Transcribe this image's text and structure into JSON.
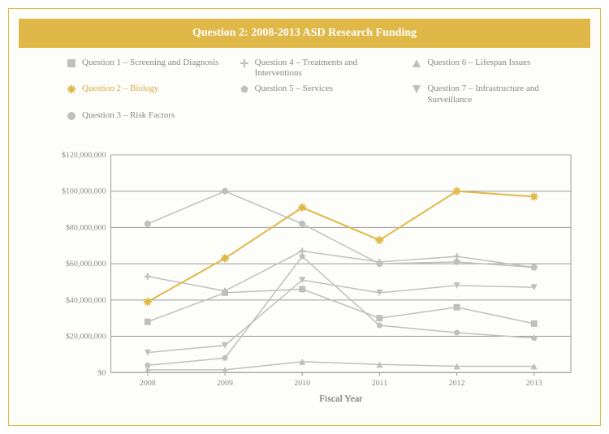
{
  "title": "Question 2: 2008-2013 ASD Research Funding",
  "title_bg": "#e0b848",
  "title_color": "#ffffff",
  "title_fontsize": 14,
  "frame_border": "#e0b848",
  "bg": "#fdfdf9",
  "legend_text_color": "#888888",
  "legend_highlight_color": "#d9a93e",
  "legend_fontsize": 11,
  "chart": {
    "type": "line",
    "xlabel": "Fiscal Year",
    "x_categories": [
      "2008",
      "2009",
      "2010",
      "2011",
      "2012",
      "2013"
    ],
    "ylim": [
      0,
      120000000
    ],
    "ytick_step": 20000000,
    "ytick_labels": [
      "$0",
      "$20,000,000",
      "$40,000,000",
      "$60,000,000",
      "$80,000,000",
      "$100,000,000",
      "$120,000,000"
    ],
    "grid_color": "#999999",
    "axis_color": "#999999",
    "yaxis_text_color": "#888888",
    "xaxis_text_color": "#888888",
    "xlabel_color": "#555555",
    "line_width_default": 1.5,
    "line_width_highlight": 2,
    "marker_size": 6,
    "series": [
      {
        "name": "Question 1 – Screening and Diagnosis",
        "marker": "square",
        "color": "#bfbfbf",
        "highlighted": false,
        "values": [
          28000000,
          44000000,
          46000000,
          30000000,
          36000000,
          27000000
        ]
      },
      {
        "name": "Question 2 – Biology",
        "marker": "asterisk",
        "color": "#e0b848",
        "highlighted": true,
        "values": [
          39000000,
          63000000,
          91000000,
          73000000,
          100000000,
          97000000
        ]
      },
      {
        "name": "Question 3 – Risk Factors",
        "marker": "circle",
        "color": "#bfbfbf",
        "highlighted": false,
        "values": [
          82000000,
          100000000,
          82000000,
          60000000,
          61000000,
          58000000
        ]
      },
      {
        "name": "Question 4 – Treatments and Interventions",
        "marker": "plus",
        "color": "#bfbfbf",
        "highlighted": false,
        "values": [
          53000000,
          45000000,
          67000000,
          61000000,
          64000000,
          58000000
        ]
      },
      {
        "name": "Question 5 – Services",
        "marker": "pentagon",
        "color": "#bfbfbf",
        "highlighted": false,
        "values": [
          4000000,
          8000000,
          64000000,
          26000000,
          22000000,
          19000000
        ]
      },
      {
        "name": "Question 6 – Lifespan Issues",
        "marker": "triangle-up",
        "color": "#bfbfbf",
        "highlighted": false,
        "values": [
          1500000,
          1500000,
          6000000,
          4500000,
          3500000,
          3500000
        ]
      },
      {
        "name": "Question 7 – Infrastructure and Surveillance",
        "marker": "triangle-down",
        "color": "#bfbfbf",
        "highlighted": false,
        "values": [
          11000000,
          15000000,
          51000000,
          44000000,
          48000000,
          47000000
        ]
      }
    ]
  }
}
